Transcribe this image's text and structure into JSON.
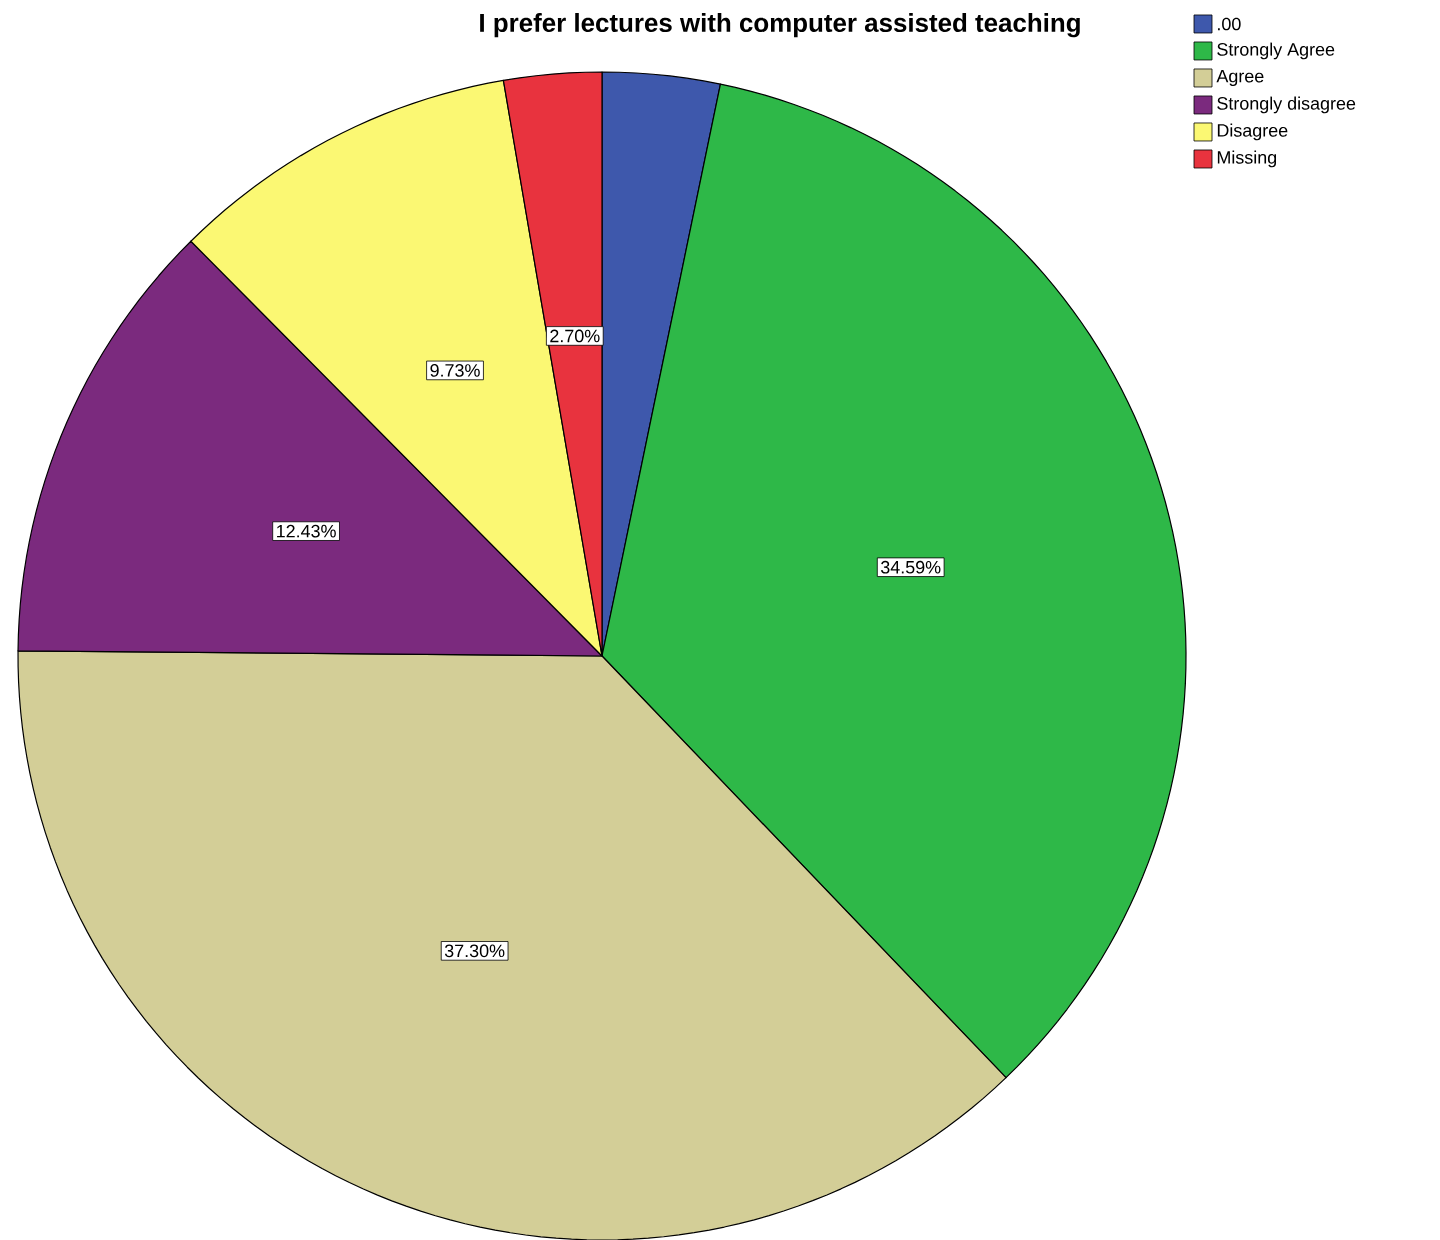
{
  "chart_data": {
    "type": "pie",
    "title": "I prefer lectures with computer assisted teaching",
    "categories": [
      ".00",
      "Strongly Agree",
      "Agree",
      "Strongly disagree",
      "Disagree",
      "Missing"
    ],
    "values": [
      3.25,
      34.59,
      37.3,
      12.43,
      9.73,
      2.7
    ],
    "colors": [
      "#3e58ac",
      "#2eb848",
      "#d3ce97",
      "#7b2a7e",
      "#fbf873",
      "#e8333e"
    ],
    "value_labels": [
      null,
      "34.59%",
      "37.30%",
      "12.43%",
      "9.73%",
      "2.70%"
    ],
    "legend": "top right"
  }
}
